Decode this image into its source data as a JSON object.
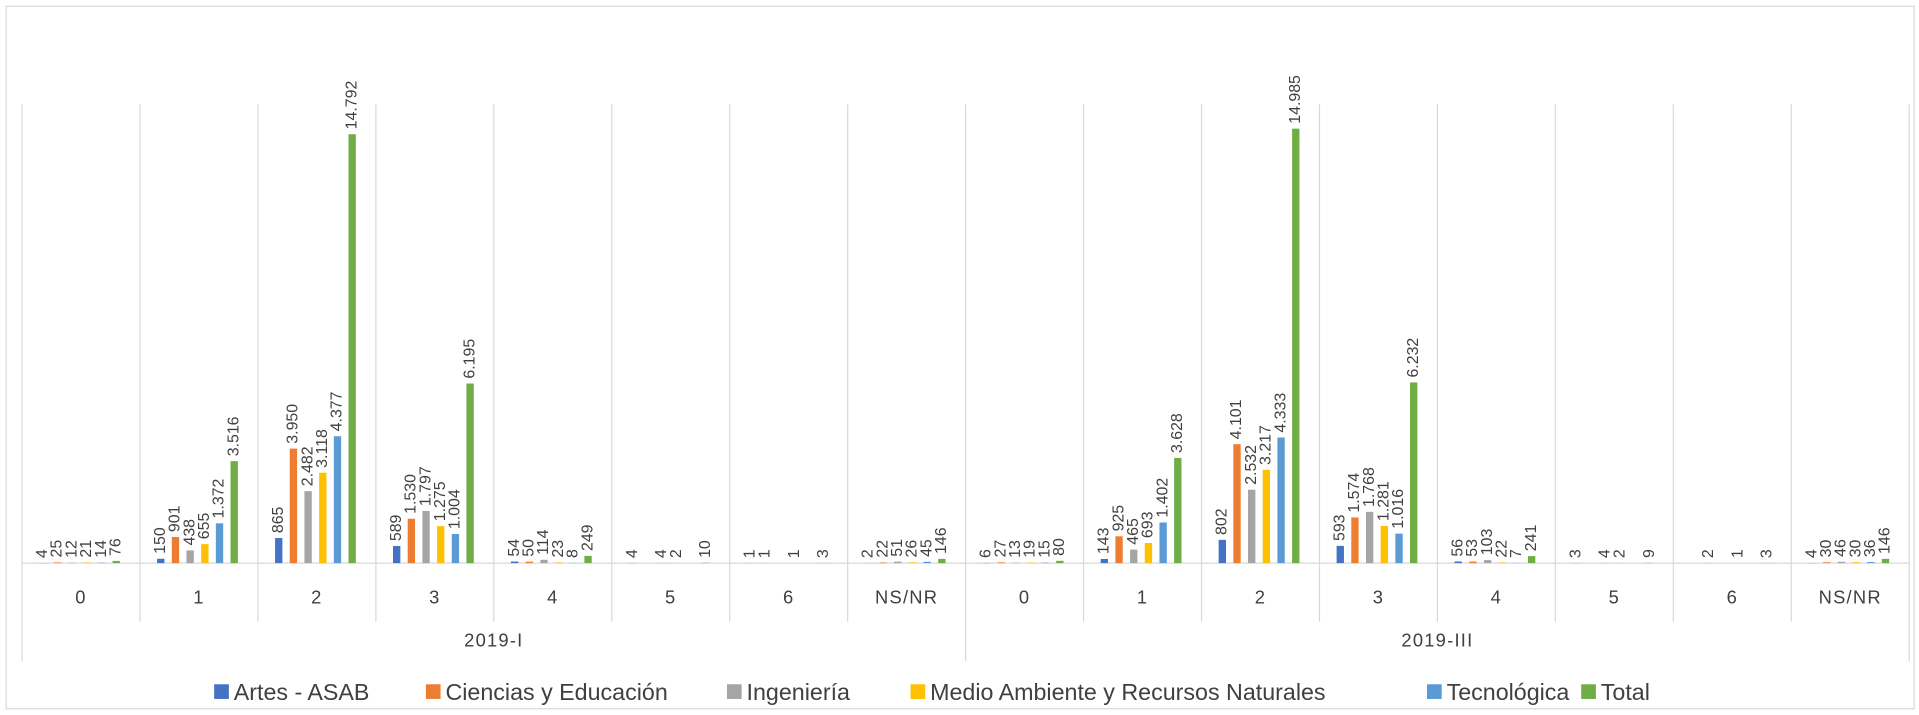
{
  "chart_data": {
    "type": "bar",
    "categories": [
      "0",
      "1",
      "2",
      "3",
      "4",
      "5",
      "6",
      "NS/NR",
      "0",
      "1",
      "2",
      "3",
      "4",
      "5",
      "6",
      "NS/NR"
    ],
    "category_groups": [
      "2019-I",
      "2019-III"
    ],
    "series": [
      {
        "name": "Artes - ASAB",
        "color": "#4472c4",
        "values": [
          4,
          150,
          865,
          589,
          54,
          4,
          1,
          2,
          6,
          143,
          802,
          593,
          56,
          3,
          null,
          4
        ],
        "value_labels": [
          "4",
          "150",
          "865",
          "589",
          "54",
          "4",
          "1",
          "2",
          "6",
          "143",
          "802",
          "593",
          "56",
          "3",
          null,
          "4"
        ]
      },
      {
        "name": "Ciencias y Educación",
        "color": "#ed7d31",
        "values": [
          25,
          901,
          3950,
          1530,
          50,
          null,
          1,
          22,
          27,
          925,
          4101,
          1574,
          53,
          null,
          2,
          30
        ],
        "value_labels": [
          "25",
          "901",
          "3.950",
          "1.530",
          "50",
          null,
          "1",
          "22",
          "27",
          "925",
          "4.101",
          "1.574",
          "53",
          null,
          "2",
          "30"
        ]
      },
      {
        "name": "Ingeniería",
        "color": "#a5a5a5",
        "values": [
          12,
          438,
          2482,
          1797,
          114,
          4,
          null,
          51,
          13,
          465,
          2532,
          1768,
          103,
          4,
          null,
          46
        ],
        "value_labels": [
          "12",
          "438",
          "2.482",
          "1.797",
          "114",
          "4",
          null,
          "51",
          "13",
          "465",
          "2.532",
          "1.768",
          "103",
          "4",
          null,
          "46"
        ]
      },
      {
        "name": "Medio Ambiente y Recursos Naturales",
        "color": "#ffc000",
        "values": [
          21,
          655,
          3118,
          1275,
          23,
          2,
          1,
          26,
          19,
          693,
          3217,
          1281,
          22,
          2,
          1,
          30
        ],
        "value_labels": [
          "21",
          "655",
          "3.118",
          "1.275",
          "23",
          "2",
          "1",
          "26",
          "19",
          "693",
          "3.217",
          "1.281",
          "22",
          "2",
          "1",
          "30"
        ]
      },
      {
        "name": "Tecnológica",
        "color": "#5b9bd5",
        "values": [
          14,
          1372,
          4377,
          1004,
          8,
          null,
          null,
          45,
          15,
          1402,
          4333,
          1016,
          7,
          null,
          null,
          36
        ],
        "value_labels": [
          "14",
          "1.372",
          "4.377",
          "1.004",
          "8",
          null,
          null,
          "45",
          "15",
          "1.402",
          "4.333",
          "1.016",
          "7",
          null,
          null,
          "36"
        ]
      },
      {
        "name": "Total",
        "color": "#70ad47",
        "values": [
          76,
          3516,
          14792,
          6195,
          249,
          10,
          3,
          146,
          80,
          3628,
          14985,
          6232,
          241,
          9,
          3,
          146
        ],
        "value_labels": [
          "76",
          "3.516",
          "14.792",
          "6.195",
          "249",
          "10",
          "3",
          "146",
          "80",
          "3.628",
          "14.985",
          "6.232",
          "241",
          "9",
          "3",
          "146"
        ]
      }
    ]
  }
}
